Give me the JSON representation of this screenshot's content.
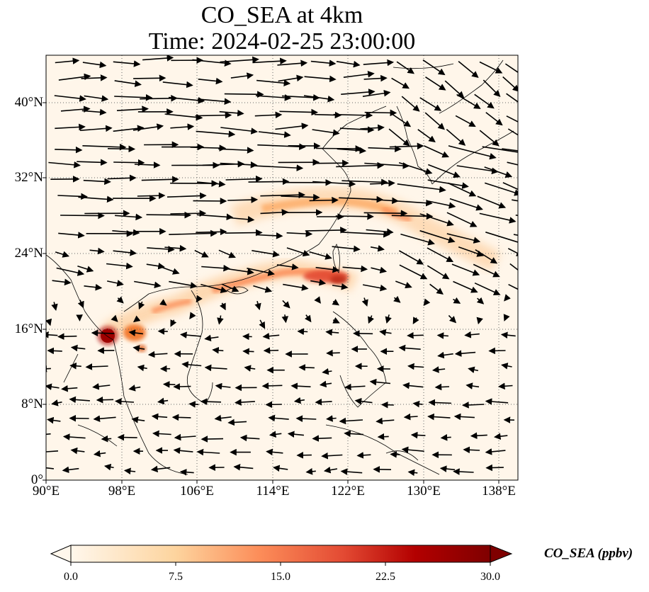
{
  "title": {
    "line1": "CO_SEA at 4km",
    "line2": "Time: 2024-02-25 23:00:00"
  },
  "map": {
    "lon_range": [
      90,
      140
    ],
    "lat_range": [
      0,
      45
    ],
    "lon_ticks": [
      "90°E",
      "98°E",
      "106°E",
      "114°E",
      "122°E",
      "130°E",
      "138°E"
    ],
    "lat_ticks": [
      "0°",
      "8°N",
      "16°N",
      "24°N",
      "32°N",
      "40°N"
    ],
    "gridlines": true,
    "field": "CO_SEA",
    "overlay": "wind vectors",
    "plume_colors": {
      "low": "#fff5eb",
      "mid": "#fdae6b",
      "high": "#d94801",
      "max": "#7f0000"
    }
  },
  "colorbar": {
    "label": "CO_SEA (ppbv)",
    "ticks": [
      "0.0",
      "7.5",
      "15.0",
      "22.5",
      "30.0"
    ],
    "range": [
      0,
      30
    ],
    "extend": "both",
    "colormap": "OrRd"
  }
}
